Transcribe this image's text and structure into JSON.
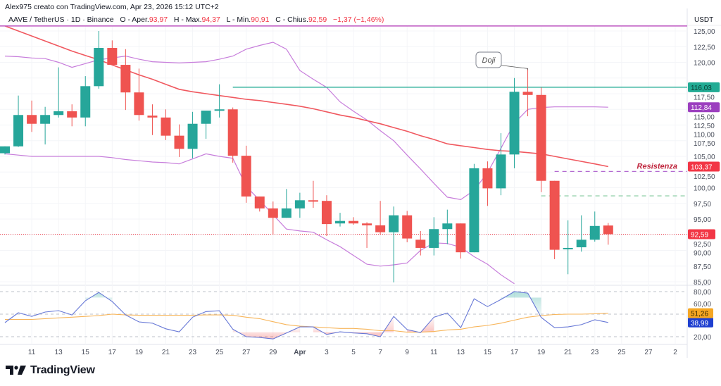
{
  "header": {
    "attribution": "Alex975 creato con TradingView.com, Apr 23, 2026 15:12 UTC+2",
    "symbol": "AAVE / TetherUS · 1D · Binance",
    "open_label": "O - Aper.",
    "open_value": "93,97",
    "high_label": "H - Max.",
    "high_value": "94,37",
    "low_label": "L - Min.",
    "low_value": "90,91",
    "close_label": "C - Chius.",
    "close_value": "92,59",
    "change": "−1,37 (−1,46%)"
  },
  "footer": {
    "brand": "TradingView"
  },
  "colors": {
    "up": "#26a69a",
    "down": "#ef5350",
    "ma": "#f0585f",
    "bands": "#c77ddb",
    "rsi": "#6677d6",
    "rsi_ma": "#f7b55a",
    "level_green": "#22ab94",
    "resistance_text": "#c0283f"
  },
  "chart_data": [
    {
      "type": "candlestick",
      "title": "",
      "currency": "USDT",
      "ylim": [
        85,
        125
      ],
      "y_ticks": [
        "85,00",
        "87,50",
        "90,00",
        "92,50",
        "95,00",
        "97,50",
        "100,00",
        "102,50",
        "105,00",
        "107,50",
        "110,00",
        "112,50",
        "115,00",
        "117,50",
        "120,00",
        "122,50",
        "125,00"
      ],
      "x_ticks": [
        "11",
        "13",
        "15",
        "17",
        "19",
        "21",
        "23",
        "25",
        "27",
        "29",
        "Apr",
        "3",
        "5",
        "7",
        "9",
        "11",
        "13",
        "15",
        "17",
        "19",
        "21",
        "23",
        "25",
        "27",
        "2"
      ],
      "dates": [
        "Mar 9",
        "Mar 10",
        "Mar 11",
        "Mar 12",
        "Mar 13",
        "Mar 14",
        "Mar 15",
        "Mar 16",
        "Mar 17",
        "Mar 18",
        "Mar 19",
        "Mar 20",
        "Mar 21",
        "Mar 22",
        "Mar 23",
        "Mar 24",
        "Mar 25",
        "Mar 26",
        "Mar 27",
        "Mar 28",
        "Mar 29",
        "Mar 30",
        "Mar 31",
        "Apr 1",
        "Apr 2",
        "Apr 3",
        "Apr 4",
        "Apr 5",
        "Apr 6",
        "Apr 7",
        "Apr 8",
        "Apr 9",
        "Apr 10",
        "Apr 11",
        "Apr 12",
        "Apr 13",
        "Apr 14",
        "Apr 15",
        "Apr 16",
        "Apr 17",
        "Apr 18",
        "Apr 19",
        "Apr 20",
        "Apr 21",
        "Apr 22",
        "Apr 23"
      ],
      "open": [
        105.5,
        106.6,
        111.6,
        110.2,
        111.6,
        112.2,
        111.2,
        116.2,
        122.3,
        119.6,
        115.2,
        111.5,
        111.2,
        108.3,
        106.2,
        110.2,
        112.3,
        112.5,
        105.1,
        98.6,
        96.7,
        95.2,
        96.7,
        98.0,
        97.9,
        94.3,
        94.7,
        94.3,
        94.0,
        92.9,
        95.6,
        91.7,
        90.4,
        93.4,
        94.3,
        89.7,
        103.1,
        99.9,
        105.3,
        115.3,
        114.8,
        101.1,
        90.2,
        90.5,
        91.7,
        93.97
      ],
      "high": [
        106.6,
        114.7,
        113.9,
        112.9,
        119.2,
        113.3,
        117.8,
        125.0,
        123.5,
        122.1,
        119.0,
        113.3,
        112.5,
        110.1,
        112.1,
        112.3,
        116.5,
        112.8,
        106.7,
        98.6,
        97.8,
        99.8,
        99.2,
        101.1,
        98.8,
        96.0,
        95.3,
        94.5,
        97.9,
        97.0,
        96.3,
        93.1,
        95.3,
        96.5,
        94.3,
        103.8,
        104.2,
        108.7,
        117.5,
        119.0,
        116.0,
        101.1,
        94.8,
        95.6,
        96.2,
        94.37
      ],
      "low": [
        105.3,
        106.5,
        108.9,
        106.9,
        111.2,
        109.8,
        109.8,
        115.8,
        119.6,
        112.4,
        110.7,
        108.4,
        107.6,
        104.9,
        104.7,
        107.8,
        111.2,
        104.0,
        97.6,
        96.2,
        92.5,
        95.2,
        95.2,
        96.8,
        92.3,
        93.8,
        94.1,
        90.4,
        92.5,
        84.9,
        91.3,
        89.2,
        89.2,
        91.0,
        88.7,
        89.7,
        97.1,
        98.8,
        103.1,
        111.4,
        99.3,
        88.6,
        86.2,
        89.8,
        91.4,
        90.91
      ],
      "close": [
        106.6,
        111.6,
        110.2,
        111.6,
        112.2,
        111.2,
        116.2,
        122.3,
        119.6,
        115.2,
        111.6,
        111.2,
        108.3,
        106.2,
        110.2,
        112.3,
        112.5,
        105.1,
        98.6,
        96.7,
        95.2,
        96.7,
        98.0,
        97.9,
        94.2,
        94.7,
        94.3,
        94.0,
        92.9,
        95.6,
        91.9,
        90.4,
        93.4,
        94.3,
        89.7,
        103.1,
        99.9,
        105.3,
        115.3,
        114.8,
        101.1,
        90.1,
        90.4,
        91.7,
        93.9,
        92.59
      ],
      "moving_average": [
        125.8,
        125.0,
        124.2,
        123.4,
        122.6,
        121.8,
        121.1,
        120.4,
        119.6,
        118.8,
        118.0,
        117.3,
        116.5,
        115.7,
        115.3,
        115.0,
        114.7,
        114.4,
        114.1,
        113.9,
        113.6,
        113.3,
        113.0,
        112.6,
        112.1,
        111.6,
        111.2,
        110.7,
        110.2,
        109.6,
        109.0,
        108.3,
        107.7,
        107.0,
        106.7,
        106.4,
        106.1,
        105.9,
        105.8,
        105.6,
        105.4,
        105.0,
        104.6,
        104.2,
        103.8,
        103.37
      ],
      "band_upper": [
        121.0,
        120.9,
        120.7,
        120.6,
        120.0,
        119.2,
        119.8,
        120.4,
        120.7,
        121.0,
        120.5,
        120.1,
        120.0,
        119.9,
        120.0,
        120.1,
        120.5,
        121.0,
        122.1,
        122.7,
        123.2,
        122.1,
        118.7,
        117.3,
        116.0,
        113.7,
        112.2,
        110.8,
        109.1,
        107.5,
        105.2,
        103.0,
        100.7,
        98.5,
        98.1,
        99.6,
        102.4,
        106.3,
        110.3,
        112.5,
        112.8,
        112.9,
        112.9,
        112.9,
        112.9,
        112.84
      ],
      "band_lower": [
        105.4,
        105.2,
        105.0,
        105.0,
        105.0,
        105.0,
        105.0,
        105.0,
        104.8,
        104.5,
        104.3,
        104.1,
        104.0,
        103.8,
        104.6,
        105.4,
        105.0,
        104.7,
        100.2,
        98.0,
        95.7,
        93.4,
        93.1,
        92.9,
        91.7,
        90.6,
        89.2,
        87.8,
        87.5,
        87.7,
        88.0,
        90.0,
        91.2,
        91.1,
        90.5,
        89.0,
        87.8,
        86.1,
        84.7,
        null,
        null,
        null,
        null,
        null,
        null,
        null
      ],
      "horizontal_lines": [
        {
          "value": 125.8,
          "style": "solid",
          "color": "#c25bc4"
        },
        {
          "value": 116.03,
          "style": "solid",
          "color": "#22ab94",
          "from": "Mar 26"
        },
        {
          "value": 102.6,
          "style": "dashed",
          "color": "#b36ad0",
          "from": "Apr 19"
        },
        {
          "value": 98.7,
          "style": "dashed",
          "color": "#7cc79a",
          "from": "Apr 18"
        },
        {
          "value": 92.59,
          "style": "dotted",
          "color": "#f23645"
        }
      ],
      "price_labels": [
        {
          "text": "116,03",
          "value": 116.03,
          "bg": "#22ab94",
          "fg": "#0b3b33"
        },
        {
          "text": "112,84",
          "value": 112.84,
          "bg": "#9c3fbf",
          "fg": "#ffffff"
        },
        {
          "text": "103,37",
          "value": 103.37,
          "bg": "#f23645",
          "fg": "#ffffff"
        },
        {
          "text": "92,59",
          "value": 92.59,
          "bg": "#f23645",
          "fg": "#ffffff"
        }
      ],
      "annotations": [
        {
          "text": "Doji",
          "date": "Apr 17",
          "value": 119.0
        },
        {
          "text": "Resistenza",
          "value": 102.6
        }
      ]
    },
    {
      "type": "line",
      "title": "",
      "ylim": [
        20,
        80
      ],
      "y_ticks": [
        "80,00",
        "60,00",
        "20,00"
      ],
      "levels": [
        80,
        50,
        20
      ],
      "series": [
        {
          "values": [
            38.8,
            51.9,
            47,
            52.8,
            54.7,
            49,
            67.8,
            79,
            66.8,
            49,
            39.7,
            38,
            30.5,
            26.5,
            46,
            53.5,
            54.5,
            30,
            20,
            19,
            17,
            25,
            33,
            33,
            23,
            26.5,
            25,
            24,
            20,
            47,
            29.5,
            25.5,
            46,
            51.5,
            32,
            70.5,
            60,
            69.6,
            80,
            78,
            45.7,
            32,
            33,
            36,
            42.5,
            38.99
          ],
          "color": "#6677d6",
          "label": "38,99",
          "label_bg": "#1e3fd0",
          "label_fg": "#ffffff"
        },
        {
          "values": [
            43,
            43,
            43,
            44,
            45,
            46,
            47,
            48,
            50,
            49,
            48.5,
            48.5,
            48.5,
            48.5,
            48.5,
            49,
            49,
            48.5,
            46,
            44,
            40,
            36,
            34,
            33,
            32,
            31,
            31,
            30,
            28,
            28,
            26,
            26,
            27,
            29,
            30,
            33,
            35,
            38,
            42,
            46,
            48,
            49.5,
            50,
            50,
            50.5,
            51.26
          ],
          "color": "#f7b55a",
          "label": "51,26",
          "label_bg": "#f5a623",
          "label_fg": "#3a2a00"
        }
      ]
    }
  ]
}
